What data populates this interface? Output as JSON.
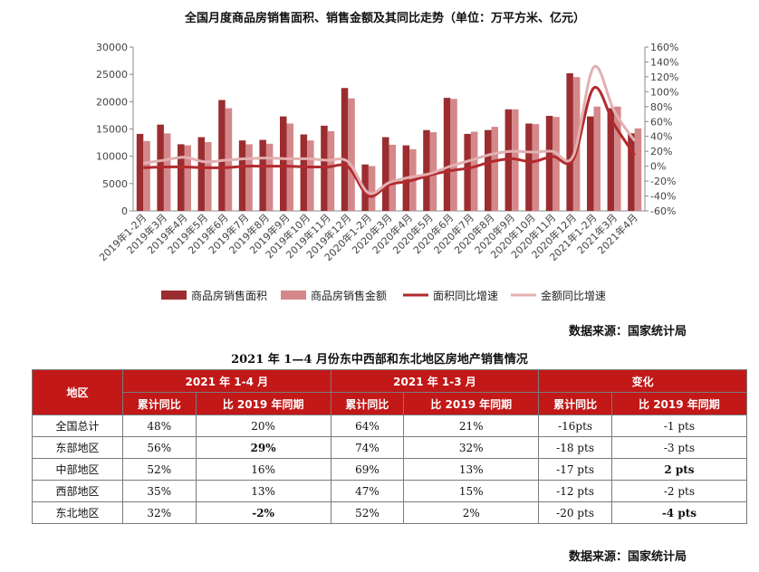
{
  "chart_data": {
    "type": "bar",
    "title": "全国月度商品房销售面积、销售金额及其同比走势（单位：万平方米、亿元）",
    "categories": [
      "2019年1-2月",
      "2019年3月",
      "2019年4月",
      "2019年5月",
      "2019年6月",
      "2019年7月",
      "2019年8月",
      "2019年9月",
      "2019年10月",
      "2019年11月",
      "2019年12月",
      "2020年1-2月",
      "2020年3月",
      "2020年4月",
      "2020年5月",
      "2020年6月",
      "2020年7月",
      "2020年8月",
      "2020年9月",
      "2020年10月",
      "2020年11月",
      "2020年12月",
      "2021年1-2月",
      "2021年3月",
      "2021年4月"
    ],
    "y_left": {
      "ylim": [
        0,
        30000
      ],
      "ticks": [
        0,
        5000,
        10000,
        15000,
        20000,
        25000,
        30000
      ]
    },
    "y_right": {
      "ylim": [
        -60,
        160
      ],
      "ticks": [
        "-60%",
        "-40%",
        "-20%",
        "0%",
        "20%",
        "40%",
        "60%",
        "80%",
        "100%",
        "120%",
        "140%",
        "160%"
      ]
    },
    "series": [
      {
        "name": "商品房销售面积",
        "kind": "bar",
        "axis": "left",
        "color": "#9b2d30",
        "values": [
          14100,
          15800,
          12200,
          13500,
          20300,
          12900,
          13000,
          17300,
          14000,
          15600,
          22500,
          8500,
          13500,
          12000,
          14800,
          20700,
          14100,
          14800,
          18600,
          16000,
          17400,
          25200,
          17300,
          18800,
          14200
        ]
      },
      {
        "name": "商品房销售金额",
        "kind": "bar",
        "axis": "left",
        "color": "#d4888a",
        "values": [
          12800,
          14200,
          12000,
          12600,
          18800,
          12200,
          12300,
          16000,
          12900,
          14600,
          20600,
          8200,
          12100,
          11300,
          14400,
          20500,
          14500,
          15400,
          18600,
          15900,
          17200,
          24500,
          19100,
          19100,
          15100
        ]
      },
      {
        "name": "面积同比增速",
        "kind": "line",
        "axis": "right",
        "color": "#b22a2e",
        "values": [
          -2,
          -1,
          -1,
          -2,
          -2,
          0,
          0,
          0,
          -1,
          -1,
          -1,
          -40,
          -25,
          -20,
          -12,
          -6,
          -2,
          6,
          10,
          6,
          13,
          9,
          105,
          56,
          15
        ]
      },
      {
        "name": "金额同比增速",
        "kind": "line",
        "axis": "right",
        "color": "#e3b0b1",
        "values": [
          4,
          8,
          12,
          6,
          8,
          10,
          11,
          10,
          10,
          8,
          6,
          -36,
          -22,
          -15,
          -10,
          0,
          8,
          16,
          20,
          19,
          20,
          14,
          133,
          74,
          34
        ]
      }
    ],
    "legend_position": "bottom"
  },
  "chart_source": "数据来源：国家统计局",
  "table": {
    "title": "2021 年 1—4 月份东中西部和东北地区房地产销售情况",
    "region_header": "地区",
    "groups": [
      "2021 年 1-4 月",
      "2021 年 1-3 月",
      "变化"
    ],
    "subheaders": [
      "累计同比",
      "比 2019 年同期",
      "累计同比",
      "比 2019 年同期",
      "累计同比",
      "比 2019 年同期"
    ],
    "rows": [
      {
        "region": "全国总计",
        "cells": [
          "48%",
          "20%",
          "64%",
          "21%",
          "-16pts",
          "-1 pts"
        ],
        "bold": []
      },
      {
        "region": "东部地区",
        "cells": [
          "56%",
          "29%",
          "74%",
          "32%",
          "-18 pts",
          "-3 pts"
        ],
        "bold": [
          1
        ]
      },
      {
        "region": "中部地区",
        "cells": [
          "52%",
          "16%",
          "69%",
          "13%",
          "-17 pts",
          "2 pts"
        ],
        "bold": [
          5
        ]
      },
      {
        "region": "西部地区",
        "cells": [
          "35%",
          "13%",
          "47%",
          "15%",
          "-12 pts",
          "-2 pts"
        ],
        "bold": []
      },
      {
        "region": "东北地区",
        "cells": [
          "32%",
          "-2%",
          "52%",
          "2%",
          "-20 pts",
          "-4 pts"
        ],
        "bold": [
          1,
          5
        ]
      }
    ]
  },
  "table_source": "数据来源：国家统计局"
}
